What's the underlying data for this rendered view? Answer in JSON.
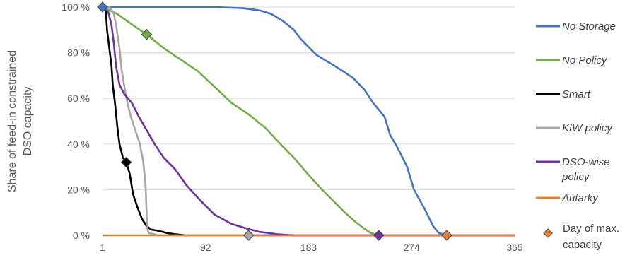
{
  "chart_data": {
    "type": "line",
    "title": "",
    "ylabel": [
      "Share of feed-in constrained",
      "DSO capacity"
    ],
    "xlabel": "",
    "xlim": [
      1,
      365
    ],
    "ylim": [
      0,
      100
    ],
    "x_ticks": [
      1,
      92,
      183,
      274,
      365
    ],
    "x_tick_labels": [
      "1",
      "92",
      "183",
      "274",
      "365"
    ],
    "y_ticks": [
      0,
      20,
      40,
      60,
      80,
      100
    ],
    "y_tick_labels": [
      "0 %",
      "20 %",
      "40 %",
      "60 %",
      "80 %",
      "100 %"
    ],
    "grid": "horizontal",
    "legend_position": "right",
    "series": [
      {
        "name": "No Storage",
        "color": "#4472C4",
        "points": [
          [
            1,
            100
          ],
          [
            100,
            100
          ],
          [
            125,
            99.5
          ],
          [
            140,
            98.5
          ],
          [
            150,
            97
          ],
          [
            160,
            94
          ],
          [
            170,
            90
          ],
          [
            176,
            86
          ],
          [
            182,
            83
          ],
          [
            190,
            79
          ],
          [
            200,
            76
          ],
          [
            210,
            73
          ],
          [
            222,
            69
          ],
          [
            232,
            64
          ],
          [
            240,
            58
          ],
          [
            250,
            52
          ],
          [
            255,
            44
          ],
          [
            262,
            38
          ],
          [
            270,
            30
          ],
          [
            276,
            20
          ],
          [
            285,
            12
          ],
          [
            293,
            4
          ],
          [
            298,
            1
          ],
          [
            305,
            0
          ],
          [
            365,
            0
          ]
        ]
      },
      {
        "name": "No Policy",
        "color": "#70AD47",
        "points": [
          [
            1,
            100
          ],
          [
            14,
            97
          ],
          [
            28,
            92
          ],
          [
            40,
            88
          ],
          [
            55,
            82
          ],
          [
            70,
            77
          ],
          [
            85,
            72
          ],
          [
            100,
            65
          ],
          [
            115,
            58
          ],
          [
            130,
            53
          ],
          [
            145,
            47
          ],
          [
            158,
            40
          ],
          [
            170,
            34
          ],
          [
            182,
            27
          ],
          [
            193,
            21
          ],
          [
            205,
            15
          ],
          [
            215,
            10
          ],
          [
            224,
            6
          ],
          [
            232,
            3
          ],
          [
            238,
            1
          ],
          [
            245,
            0
          ],
          [
            365,
            0
          ]
        ]
      },
      {
        "name": "Smart",
        "color": "#000000",
        "points": [
          [
            1,
            100
          ],
          [
            4,
            98
          ],
          [
            5,
            90
          ],
          [
            7,
            82
          ],
          [
            9,
            74
          ],
          [
            10,
            66
          ],
          [
            12,
            58
          ],
          [
            14,
            48
          ],
          [
            16,
            40
          ],
          [
            19,
            34
          ],
          [
            22,
            32
          ],
          [
            25,
            27
          ],
          [
            28,
            18
          ],
          [
            32,
            12
          ],
          [
            36,
            7
          ],
          [
            40,
            4
          ],
          [
            44,
            2.5
          ],
          [
            50,
            2
          ],
          [
            58,
            1
          ],
          [
            65,
            0.5
          ],
          [
            75,
            0
          ],
          [
            365,
            0
          ]
        ]
      },
      {
        "name": "KfW policy",
        "color": "#A5A5A5",
        "points": [
          [
            1,
            100
          ],
          [
            7,
            100
          ],
          [
            11,
            97
          ],
          [
            13,
            92
          ],
          [
            16,
            82
          ],
          [
            18,
            72
          ],
          [
            20,
            66
          ],
          [
            23,
            58
          ],
          [
            26,
            52
          ],
          [
            30,
            46
          ],
          [
            34,
            40
          ],
          [
            37,
            32
          ],
          [
            39,
            22
          ],
          [
            40,
            8
          ],
          [
            41,
            2
          ],
          [
            42,
            1
          ],
          [
            50,
            0
          ],
          [
            365,
            0
          ]
        ]
      },
      {
        "name": "DSO-wise policy",
        "color": "#7030A0",
        "points": [
          [
            1,
            100
          ],
          [
            6,
            98
          ],
          [
            9,
            92
          ],
          [
            11,
            84
          ],
          [
            13,
            74
          ],
          [
            16,
            66
          ],
          [
            20,
            62
          ],
          [
            27,
            58
          ],
          [
            33,
            52
          ],
          [
            40,
            46
          ],
          [
            47,
            40
          ],
          [
            55,
            34
          ],
          [
            65,
            29
          ],
          [
            75,
            22
          ],
          [
            88,
            15
          ],
          [
            100,
            9
          ],
          [
            115,
            5
          ],
          [
            128,
            3
          ],
          [
            140,
            1.5
          ],
          [
            155,
            0.5
          ],
          [
            170,
            0
          ],
          [
            365,
            0
          ]
        ]
      },
      {
        "name": "Autarky",
        "color": "#ED7D31",
        "points": [
          [
            1,
            0
          ],
          [
            365,
            0
          ]
        ]
      }
    ],
    "max_capacity_markers": [
      {
        "series": "No Storage",
        "x": 1,
        "y": 100,
        "color": "#4472C4"
      },
      {
        "series": "No Policy",
        "x": 40,
        "y": 88,
        "color": "#70AD47"
      },
      {
        "series": "Smart",
        "x": 22,
        "y": 32,
        "color": "#000000"
      },
      {
        "series": "KfW policy",
        "x": 130,
        "y": 0,
        "color": "#A5A5A5"
      },
      {
        "series": "DSO-wise policy",
        "x": 245,
        "y": 0,
        "color": "#7030A0"
      },
      {
        "series": "Autarky",
        "x": 305,
        "y": 0,
        "color": "#ED7D31"
      }
    ],
    "legend": [
      {
        "type": "line",
        "lines": [
          "No Storage"
        ],
        "color": "#4472C4",
        "italic": true
      },
      {
        "type": "line",
        "lines": [
          "No Policy"
        ],
        "color": "#70AD47",
        "italic": true
      },
      {
        "type": "line",
        "lines": [
          "Smart"
        ],
        "color": "#000000",
        "italic": true
      },
      {
        "type": "line",
        "lines": [
          "KfW policy"
        ],
        "color": "#A5A5A5",
        "italic": true
      },
      {
        "type": "line",
        "lines": [
          "DSO-wise",
          "policy"
        ],
        "color": "#7030A0",
        "italic": true
      },
      {
        "type": "line",
        "lines": [
          "Autarky"
        ],
        "color": "#ED7D31",
        "italic": true
      },
      {
        "type": "marker",
        "lines": [
          "Day of max.",
          "capacity"
        ],
        "color": "#ED7D31",
        "italic": false
      }
    ]
  }
}
